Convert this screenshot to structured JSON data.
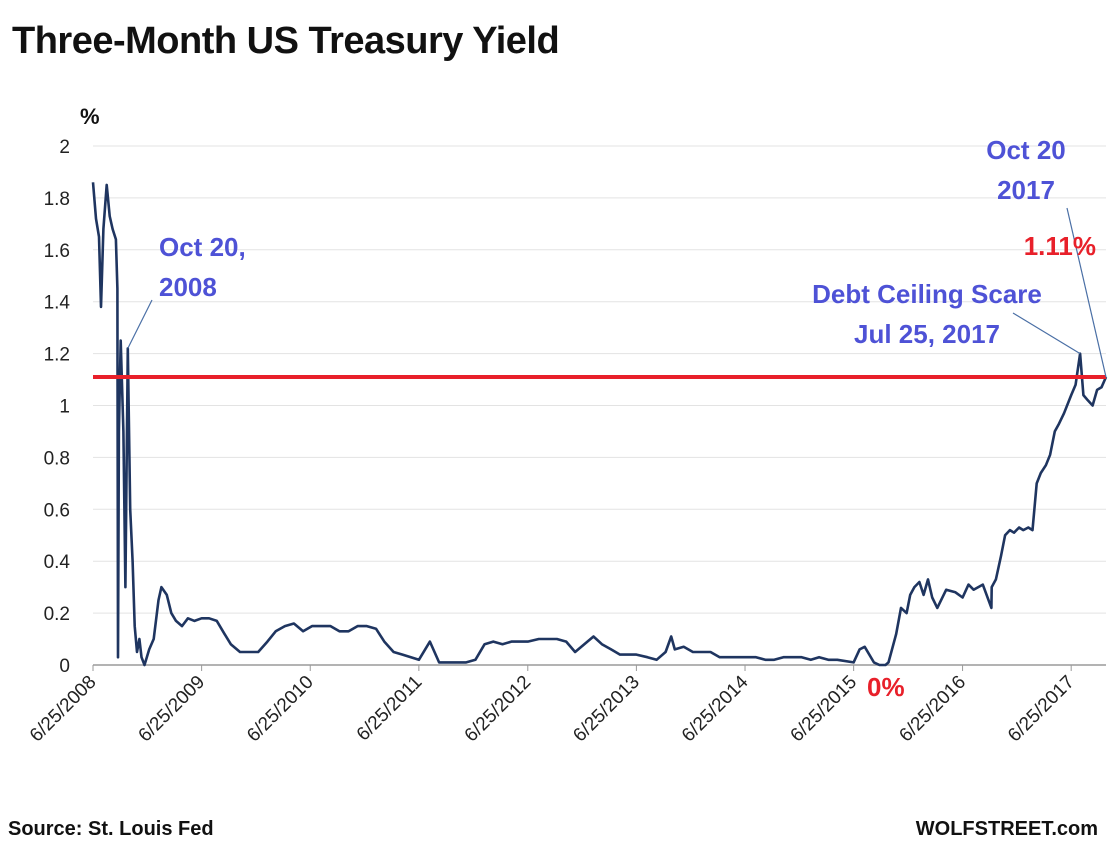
{
  "header": {
    "title": "Three-Month US Treasury Yield"
  },
  "footer": {
    "source": "Source: St. Louis Fed",
    "brand": "WOLFSTREET.com"
  },
  "colors": {
    "series": "#1f3560",
    "reference": "#e8202a",
    "annotation": "#4e52d6",
    "highlight": "#e8202a"
  },
  "chart_data": {
    "type": "line",
    "title": "Three-Month US Treasury Yield",
    "ylabel": "%",
    "xlabel": "",
    "ylim": [
      0,
      2
    ],
    "xlim": [
      "2008-06-25",
      "2017-10-20"
    ],
    "grid": true,
    "yticks": [
      {
        "value": 0,
        "label": "0"
      },
      {
        "value": 0.2,
        "label": "0.2"
      },
      {
        "value": 0.4,
        "label": "0.4"
      },
      {
        "value": 0.6,
        "label": "0.6"
      },
      {
        "value": 0.8,
        "label": "0.8"
      },
      {
        "value": 1,
        "label": "1"
      },
      {
        "value": 1.2,
        "label": "1.2"
      },
      {
        "value": 1.4,
        "label": "1.4"
      },
      {
        "value": 1.6,
        "label": "1.6"
      },
      {
        "value": 1.8,
        "label": "1.8"
      },
      {
        "value": 2,
        "label": "2"
      }
    ],
    "xticks": [
      {
        "date": "2008-06-25",
        "label": "6/25/2008"
      },
      {
        "date": "2009-06-25",
        "label": "6/25/2009"
      },
      {
        "date": "2010-06-25",
        "label": "6/25/2010"
      },
      {
        "date": "2011-06-25",
        "label": "6/25/2011"
      },
      {
        "date": "2012-06-25",
        "label": "6/25/2012"
      },
      {
        "date": "2013-06-25",
        "label": "6/25/2013"
      },
      {
        "date": "2014-06-25",
        "label": "6/25/2014"
      },
      {
        "date": "2015-06-25",
        "label": "6/25/2015"
      },
      {
        "date": "2016-06-25",
        "label": "6/25/2016"
      },
      {
        "date": "2017-06-25",
        "label": "6/25/2017"
      }
    ],
    "reference_line": {
      "value": 1.11
    },
    "series": [
      {
        "points": [
          [
            "2008-06-25",
            1.86
          ],
          [
            "2008-07-05",
            1.72
          ],
          [
            "2008-07-15",
            1.65
          ],
          [
            "2008-07-22",
            1.38
          ],
          [
            "2008-07-30",
            1.68
          ],
          [
            "2008-08-10",
            1.85
          ],
          [
            "2008-08-20",
            1.73
          ],
          [
            "2008-08-30",
            1.68
          ],
          [
            "2008-09-10",
            1.64
          ],
          [
            "2008-09-15",
            1.45
          ],
          [
            "2008-09-17",
            0.03
          ],
          [
            "2008-09-20",
            0.9
          ],
          [
            "2008-09-26",
            1.25
          ],
          [
            "2008-10-05",
            0.9
          ],
          [
            "2008-10-12",
            0.3
          ],
          [
            "2008-10-20",
            1.22
          ],
          [
            "2008-10-28",
            0.6
          ],
          [
            "2008-11-05",
            0.4
          ],
          [
            "2008-11-12",
            0.15
          ],
          [
            "2008-11-20",
            0.05
          ],
          [
            "2008-11-28",
            0.1
          ],
          [
            "2008-12-05",
            0.03
          ],
          [
            "2008-12-15",
            0.0
          ],
          [
            "2008-12-31",
            0.06
          ],
          [
            "2009-01-15",
            0.1
          ],
          [
            "2009-01-31",
            0.25
          ],
          [
            "2009-02-10",
            0.3
          ],
          [
            "2009-02-28",
            0.27
          ],
          [
            "2009-03-15",
            0.2
          ],
          [
            "2009-03-31",
            0.17
          ],
          [
            "2009-04-20",
            0.15
          ],
          [
            "2009-05-10",
            0.18
          ],
          [
            "2009-06-01",
            0.17
          ],
          [
            "2009-06-25",
            0.18
          ],
          [
            "2009-07-20",
            0.18
          ],
          [
            "2009-08-15",
            0.17
          ],
          [
            "2009-09-10",
            0.12
          ],
          [
            "2009-10-01",
            0.08
          ],
          [
            "2009-11-01",
            0.05
          ],
          [
            "2009-12-01",
            0.05
          ],
          [
            "2010-01-01",
            0.05
          ],
          [
            "2010-02-01",
            0.09
          ],
          [
            "2010-03-01",
            0.13
          ],
          [
            "2010-04-01",
            0.15
          ],
          [
            "2010-05-01",
            0.16
          ],
          [
            "2010-06-01",
            0.13
          ],
          [
            "2010-07-01",
            0.15
          ],
          [
            "2010-08-01",
            0.15
          ],
          [
            "2010-09-01",
            0.15
          ],
          [
            "2010-10-01",
            0.13
          ],
          [
            "2010-11-01",
            0.13
          ],
          [
            "2010-12-01",
            0.15
          ],
          [
            "2011-01-01",
            0.15
          ],
          [
            "2011-02-01",
            0.14
          ],
          [
            "2011-03-01",
            0.09
          ],
          [
            "2011-04-01",
            0.05
          ],
          [
            "2011-05-01",
            0.04
          ],
          [
            "2011-06-25",
            0.02
          ],
          [
            "2011-08-01",
            0.09
          ],
          [
            "2011-09-01",
            0.01
          ],
          [
            "2011-10-01",
            0.01
          ],
          [
            "2011-11-01",
            0.01
          ],
          [
            "2011-12-01",
            0.01
          ],
          [
            "2012-01-01",
            0.02
          ],
          [
            "2012-02-01",
            0.08
          ],
          [
            "2012-03-01",
            0.09
          ],
          [
            "2012-04-01",
            0.08
          ],
          [
            "2012-05-01",
            0.09
          ],
          [
            "2012-06-25",
            0.09
          ],
          [
            "2012-08-01",
            0.1
          ],
          [
            "2012-09-01",
            0.1
          ],
          [
            "2012-10-01",
            0.1
          ],
          [
            "2012-11-01",
            0.09
          ],
          [
            "2012-12-01",
            0.05
          ],
          [
            "2013-01-01",
            0.08
          ],
          [
            "2013-02-01",
            0.11
          ],
          [
            "2013-03-01",
            0.08
          ],
          [
            "2013-04-01",
            0.06
          ],
          [
            "2013-05-01",
            0.04
          ],
          [
            "2013-06-25",
            0.04
          ],
          [
            "2013-08-01",
            0.03
          ],
          [
            "2013-09-01",
            0.02
          ],
          [
            "2013-10-01",
            0.05
          ],
          [
            "2013-10-20",
            0.11
          ],
          [
            "2013-11-01",
            0.06
          ],
          [
            "2013-12-01",
            0.07
          ],
          [
            "2014-01-01",
            0.05
          ],
          [
            "2014-02-01",
            0.05
          ],
          [
            "2014-03-01",
            0.05
          ],
          [
            "2014-04-01",
            0.03
          ],
          [
            "2014-05-01",
            0.03
          ],
          [
            "2014-06-25",
            0.03
          ],
          [
            "2014-08-01",
            0.03
          ],
          [
            "2014-09-01",
            0.02
          ],
          [
            "2014-10-01",
            0.02
          ],
          [
            "2014-11-01",
            0.03
          ],
          [
            "2014-12-01",
            0.03
          ],
          [
            "2015-01-01",
            0.03
          ],
          [
            "2015-02-01",
            0.02
          ],
          [
            "2015-03-01",
            0.03
          ],
          [
            "2015-04-01",
            0.02
          ],
          [
            "2015-05-01",
            0.02
          ],
          [
            "2015-06-25",
            0.01
          ],
          [
            "2015-07-15",
            0.06
          ],
          [
            "2015-08-01",
            0.07
          ],
          [
            "2015-09-01",
            0.01
          ],
          [
            "2015-09-20",
            0.0
          ],
          [
            "2015-10-10",
            0.0
          ],
          [
            "2015-10-20",
            0.01
          ],
          [
            "2015-11-15",
            0.12
          ],
          [
            "2015-12-01",
            0.22
          ],
          [
            "2015-12-20",
            0.2
          ],
          [
            "2016-01-01",
            0.27
          ],
          [
            "2016-01-15",
            0.3
          ],
          [
            "2016-02-01",
            0.32
          ],
          [
            "2016-02-15",
            0.27
          ],
          [
            "2016-03-01",
            0.33
          ],
          [
            "2016-03-15",
            0.26
          ],
          [
            "2016-04-01",
            0.22
          ],
          [
            "2016-05-01",
            0.29
          ],
          [
            "2016-06-01",
            0.28
          ],
          [
            "2016-06-25",
            0.26
          ],
          [
            "2016-07-15",
            0.31
          ],
          [
            "2016-08-01",
            0.29
          ],
          [
            "2016-09-01",
            0.31
          ],
          [
            "2016-09-30",
            0.22
          ],
          [
            "2016-10-01",
            0.3
          ],
          [
            "2016-10-15",
            0.33
          ],
          [
            "2016-11-01",
            0.42
          ],
          [
            "2016-11-15",
            0.5
          ],
          [
            "2016-12-01",
            0.52
          ],
          [
            "2016-12-15",
            0.51
          ],
          [
            "2017-01-01",
            0.53
          ],
          [
            "2017-01-15",
            0.52
          ],
          [
            "2017-02-01",
            0.53
          ],
          [
            "2017-02-15",
            0.52
          ],
          [
            "2017-03-01",
            0.7
          ],
          [
            "2017-03-15",
            0.74
          ],
          [
            "2017-04-01",
            0.77
          ],
          [
            "2017-04-15",
            0.81
          ],
          [
            "2017-05-01",
            0.9
          ],
          [
            "2017-05-15",
            0.93
          ],
          [
            "2017-06-01",
            0.97
          ],
          [
            "2017-06-25",
            1.04
          ],
          [
            "2017-07-10",
            1.08
          ],
          [
            "2017-07-25",
            1.2
          ],
          [
            "2017-08-05",
            1.04
          ],
          [
            "2017-08-20",
            1.02
          ],
          [
            "2017-09-05",
            1.0
          ],
          [
            "2017-09-20",
            1.06
          ],
          [
            "2017-10-05",
            1.07
          ],
          [
            "2017-10-20",
            1.11
          ]
        ]
      }
    ],
    "annotations": [
      {
        "lines": [
          "Oct 20,",
          "2008"
        ],
        "color": "annotation",
        "date": "2008-10-20",
        "value": 1.22
      },
      {
        "lines": [
          "Oct 20",
          "2017"
        ],
        "color": "annotation",
        "date": "2017-10-20",
        "value": 1.11
      },
      {
        "lines": [
          "1.11%"
        ],
        "color": "highlight"
      },
      {
        "lines": [
          "Debt Ceiling Scare",
          "Jul 25, 2017"
        ],
        "color": "annotation",
        "date": "2017-07-25",
        "value": 1.2
      },
      {
        "lines": [
          "0%"
        ],
        "color": "highlight"
      }
    ]
  }
}
